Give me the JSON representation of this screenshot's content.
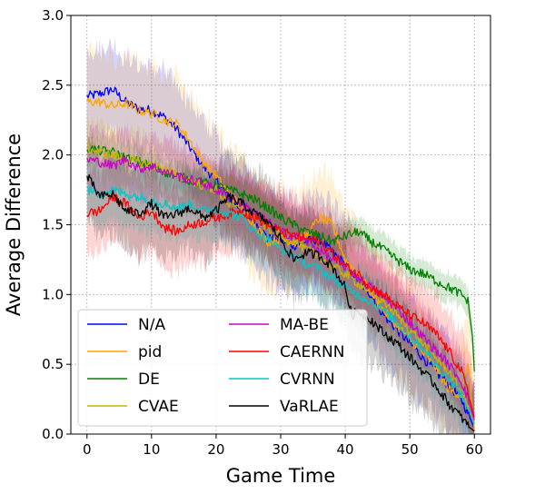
{
  "chart_data": {
    "type": "line",
    "title": "",
    "xlabel": "Game Time",
    "ylabel": "Average Difference",
    "xlim": [
      -2.5,
      62.5
    ],
    "ylim": [
      0.0,
      3.0
    ],
    "xticks": [
      0,
      10,
      20,
      30,
      40,
      50,
      60
    ],
    "yticks": [
      0.0,
      0.5,
      1.0,
      1.5,
      2.0,
      2.5,
      3.0
    ],
    "xtick_labels": [
      "0",
      "10",
      "20",
      "30",
      "40",
      "50",
      "60"
    ],
    "ytick_labels": [
      "0.0",
      "0.5",
      "1.0",
      "1.5",
      "2.0",
      "2.5",
      "3.0"
    ],
    "grid": true,
    "legend_position": "lower-left",
    "legend_columns": 2,
    "series": [
      {
        "name": "N/A",
        "color": "#0000ff",
        "band": 0.32,
        "x": [
          0,
          2,
          4,
          6,
          8,
          10,
          12,
          14,
          16,
          18,
          20,
          22,
          24,
          26,
          28,
          30,
          32,
          34,
          36,
          38,
          40,
          42,
          44,
          46,
          48,
          50,
          52,
          54,
          56,
          58,
          59,
          60
        ],
        "y": [
          2.42,
          2.44,
          2.47,
          2.38,
          2.33,
          2.32,
          2.27,
          2.18,
          2.05,
          1.92,
          1.82,
          1.7,
          1.6,
          1.52,
          1.4,
          1.4,
          1.35,
          1.38,
          1.4,
          1.3,
          1.22,
          1.1,
          1.0,
          0.85,
          0.75,
          0.65,
          0.55,
          0.45,
          0.35,
          0.25,
          0.15,
          0.04
        ]
      },
      {
        "name": "pid",
        "color": "#ffa500",
        "band": 0.35,
        "x": [
          0,
          2,
          4,
          6,
          8,
          10,
          12,
          14,
          16,
          18,
          20,
          22,
          24,
          26,
          28,
          30,
          32,
          34,
          36,
          38,
          40,
          42,
          44,
          46,
          48,
          50,
          52,
          54,
          56,
          58,
          59,
          60
        ],
        "y": [
          2.38,
          2.38,
          2.35,
          2.37,
          2.32,
          2.3,
          2.25,
          2.22,
          2.1,
          1.95,
          1.85,
          1.72,
          1.62,
          1.5,
          1.38,
          1.4,
          1.38,
          1.42,
          1.55,
          1.5,
          1.25,
          1.15,
          1.02,
          0.88,
          0.78,
          0.68,
          0.58,
          0.48,
          0.32,
          0.28,
          0.5,
          0.03
        ]
      },
      {
        "name": "DE",
        "color": "#008000",
        "band": 0.1,
        "x": [
          0,
          2,
          4,
          6,
          8,
          10,
          12,
          14,
          16,
          18,
          20,
          22,
          24,
          26,
          28,
          30,
          32,
          34,
          36,
          38,
          40,
          42,
          44,
          46,
          48,
          50,
          52,
          54,
          56,
          58,
          59,
          59.7,
          60
        ],
        "y": [
          2.05,
          2.03,
          2.02,
          1.98,
          1.95,
          1.92,
          1.88,
          1.85,
          1.82,
          1.8,
          1.78,
          1.75,
          1.72,
          1.68,
          1.62,
          1.55,
          1.5,
          1.45,
          1.42,
          1.38,
          1.42,
          1.45,
          1.38,
          1.32,
          1.25,
          1.18,
          1.15,
          1.1,
          1.05,
          1.0,
          0.95,
          0.7,
          0.45
        ]
      },
      {
        "name": "CVAE",
        "color": "#c8b400",
        "band": 0.2,
        "x": [
          0,
          2,
          4,
          6,
          8,
          10,
          12,
          14,
          16,
          18,
          20,
          22,
          24,
          26,
          28,
          30,
          32,
          34,
          36,
          38,
          40,
          42,
          44,
          46,
          48,
          50,
          52,
          54,
          56,
          58,
          59,
          60
        ],
        "y": [
          2.05,
          2.02,
          2.0,
          1.97,
          1.95,
          1.93,
          1.9,
          1.85,
          1.82,
          1.78,
          1.75,
          1.65,
          1.6,
          1.55,
          1.48,
          1.42,
          1.38,
          1.32,
          1.28,
          1.2,
          1.15,
          1.08,
          1.02,
          0.95,
          0.85,
          0.75,
          0.65,
          0.55,
          0.45,
          0.3,
          0.2,
          0.08
        ]
      },
      {
        "name": "MA-BE",
        "color": "#cc00cc",
        "band": 0.22,
        "x": [
          0,
          2,
          4,
          6,
          8,
          10,
          12,
          14,
          16,
          18,
          20,
          22,
          24,
          26,
          28,
          30,
          32,
          34,
          36,
          38,
          40,
          42,
          44,
          46,
          48,
          50,
          52,
          54,
          56,
          58,
          59,
          60
        ],
        "y": [
          1.97,
          1.95,
          1.92,
          1.97,
          1.9,
          1.92,
          1.88,
          1.85,
          1.82,
          1.8,
          1.75,
          1.7,
          1.65,
          1.58,
          1.52,
          1.45,
          1.42,
          1.38,
          1.32,
          1.25,
          1.2,
          1.12,
          1.05,
          0.98,
          0.9,
          0.8,
          0.7,
          0.6,
          0.5,
          0.38,
          0.25,
          0.1
        ]
      },
      {
        "name": "CAERNN",
        "color": "#ff0000",
        "band": 0.28,
        "x": [
          0,
          2,
          4,
          6,
          8,
          10,
          12,
          14,
          16,
          18,
          20,
          22,
          24,
          26,
          28,
          30,
          32,
          34,
          36,
          38,
          40,
          42,
          44,
          46,
          48,
          50,
          52,
          54,
          56,
          58,
          59,
          60
        ],
        "y": [
          1.58,
          1.6,
          1.7,
          1.65,
          1.55,
          1.6,
          1.48,
          1.45,
          1.5,
          1.52,
          1.55,
          1.58,
          1.6,
          1.55,
          1.5,
          1.45,
          1.42,
          1.4,
          1.38,
          1.3,
          1.2,
          1.15,
          1.05,
          1.0,
          0.92,
          0.85,
          0.8,
          0.72,
          0.6,
          0.45,
          0.3,
          0.12
        ]
      },
      {
        "name": "CVRNN",
        "color": "#00c8c8",
        "band": 0.22,
        "x": [
          0,
          2,
          4,
          6,
          8,
          10,
          12,
          14,
          16,
          18,
          20,
          22,
          24,
          26,
          28,
          30,
          32,
          34,
          36,
          38,
          40,
          42,
          44,
          46,
          48,
          50,
          52,
          54,
          56,
          58,
          59,
          60
        ],
        "y": [
          1.75,
          1.72,
          1.75,
          1.72,
          1.7,
          1.68,
          1.65,
          1.62,
          1.65,
          1.6,
          1.62,
          1.58,
          1.55,
          1.45,
          1.4,
          1.32,
          1.28,
          1.22,
          1.18,
          1.12,
          1.05,
          1.0,
          0.95,
          0.88,
          0.8,
          0.7,
          0.62,
          0.5,
          0.4,
          0.28,
          0.18,
          0.07
        ]
      },
      {
        "name": "VaRLAE",
        "color": "#000000",
        "band": 0.3,
        "x": [
          0,
          2,
          4,
          6,
          8,
          10,
          12,
          14,
          16,
          18,
          20,
          22,
          24,
          26,
          28,
          30,
          32,
          34,
          36,
          38,
          40,
          41,
          42,
          44,
          46,
          48,
          50,
          52,
          54,
          56,
          58,
          59,
          60
        ],
        "y": [
          1.85,
          1.7,
          1.72,
          1.6,
          1.58,
          1.65,
          1.55,
          1.58,
          1.62,
          1.55,
          1.6,
          1.7,
          1.65,
          1.58,
          1.52,
          1.4,
          1.25,
          1.3,
          1.28,
          1.2,
          1.05,
          0.85,
          0.88,
          0.82,
          0.72,
          0.65,
          0.55,
          0.45,
          0.35,
          0.22,
          0.12,
          0.06,
          0.02
        ]
      }
    ]
  }
}
